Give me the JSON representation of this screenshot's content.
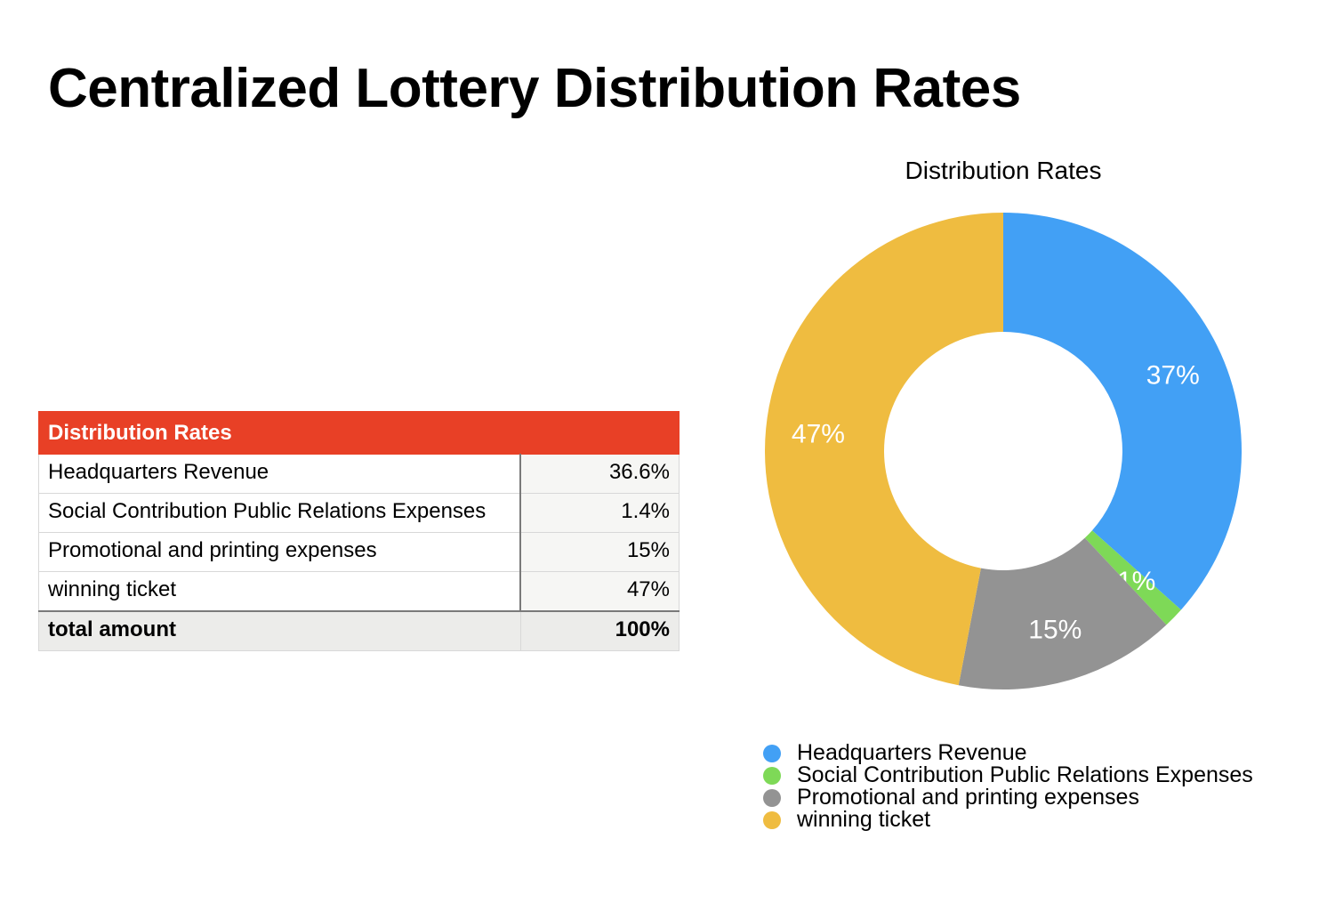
{
  "page": {
    "title": "Centralized Lottery Distribution Rates"
  },
  "table": {
    "header": "Distribution Rates",
    "rows": [
      {
        "label": "Headquarters Revenue",
        "value": "36.6%"
      },
      {
        "label": "Social Contribution Public Relations Expenses",
        "value": "1.4%"
      },
      {
        "label": "Promotional and printing expenses",
        "value": "15%"
      },
      {
        "label": "winning ticket",
        "value": "47%"
      }
    ],
    "total": {
      "label": "total amount",
      "value": "100%"
    }
  },
  "chart_data": {
    "type": "pie",
    "title": "Distribution Rates",
    "labels": [
      "Headquarters Revenue",
      "Social Contribution Public Relations Expenses",
      "Promotional and printing expenses",
      "winning ticket"
    ],
    "values": [
      36.6,
      1.4,
      15,
      47
    ],
    "data_labels": [
      "37%",
      "1%",
      "15%",
      "47%"
    ],
    "colors": [
      "#42a0f5",
      "#7ed957",
      "#939393",
      "#efbc40"
    ],
    "style": "donut",
    "legend_position": "bottom"
  }
}
